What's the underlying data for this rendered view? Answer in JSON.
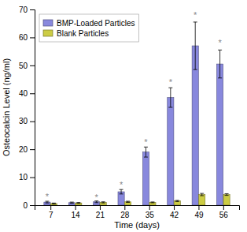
{
  "chart_data": {
    "type": "bar",
    "xlabel": "Time (days)",
    "ylabel": "Osteocalcin Level (ng/ml)",
    "x": [
      7,
      14,
      21,
      28,
      35,
      42,
      49,
      56
    ],
    "xlim": [
      2.5,
      60.5
    ],
    "xticks": [
      7,
      14,
      21,
      28,
      35,
      42,
      49,
      56
    ],
    "ylim": [
      0,
      70
    ],
    "yticks": [
      0,
      10,
      20,
      30,
      40,
      50,
      60,
      70
    ],
    "grid": false,
    "legend": "upper-left",
    "series": [
      {
        "name": "BMP-Loaded Particles",
        "color": "#8888dd",
        "values": [
          1.1,
          0.9,
          1.2,
          4.8,
          19.0,
          38.5,
          57.0,
          50.5
        ],
        "errors": [
          0.3,
          0.2,
          0.3,
          0.8,
          1.8,
          3.5,
          8.5,
          5.0
        ]
      },
      {
        "name": "Blank Particles",
        "color": "#cccc44",
        "values": [
          0.6,
          0.8,
          1.0,
          1.2,
          1.0,
          1.5,
          3.8,
          3.8
        ],
        "errors": [
          0.15,
          0.15,
          0.2,
          0.2,
          0.15,
          0.2,
          0.4,
          0.3
        ]
      }
    ],
    "annotations": [
      {
        "text": "*",
        "x": 7,
        "y": 1.9
      },
      {
        "text": "*",
        "x": 21,
        "y": 1.8
      },
      {
        "text": "*",
        "x": 28,
        "y": 6.2
      },
      {
        "text": "*",
        "x": 35,
        "y": 21.5
      },
      {
        "text": "*",
        "x": 42,
        "y": 43.0
      },
      {
        "text": "*",
        "x": 49,
        "y": 67.0
      },
      {
        "text": "*",
        "x": 56,
        "y": 57.0
      }
    ]
  }
}
